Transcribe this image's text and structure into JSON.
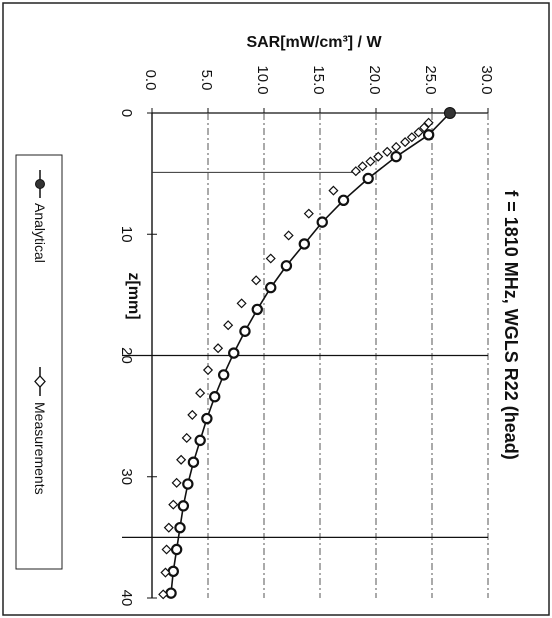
{
  "chart_data": {
    "type": "line",
    "title": "f = 1810 MHz, WGLS R22 (head)",
    "xlabel": "z[mm]",
    "ylabel": "SAR[mW/cm³] / W",
    "xlim": [
      0,
      40
    ],
    "ylim": [
      0,
      30
    ],
    "x_ticks": [
      "0",
      "10",
      "20",
      "30",
      "40"
    ],
    "y_ticks": [
      "0.0",
      "5.0",
      "10.0",
      "15.0",
      "20.0",
      "25.0",
      "30.0"
    ],
    "orientation": "rotated 90° clockwise",
    "grid": "dashed vertical gridlines at y ticks",
    "legend_position": "left",
    "series": [
      {
        "name": "Analytical",
        "marker": "filled-circle",
        "x": [
          0,
          1.8,
          3.6,
          5.4,
          7.2,
          9.0,
          10.8,
          12.6,
          14.4,
          16.2,
          18.0,
          19.8,
          21.6,
          23.4,
          25.2,
          27.0,
          28.8,
          30.6,
          32.4,
          34.2,
          36.0,
          37.8,
          39.6
        ],
        "values": [
          26.6,
          24.7,
          21.8,
          19.3,
          17.1,
          15.2,
          13.6,
          12.0,
          10.6,
          9.4,
          8.3,
          7.3,
          6.4,
          5.6,
          4.9,
          4.3,
          3.7,
          3.2,
          2.8,
          2.5,
          2.2,
          1.9,
          1.7
        ]
      },
      {
        "name": "Measurements",
        "marker": "open-diamond",
        "x": [
          0.8,
          1.2,
          1.6,
          2.0,
          2.4,
          2.8,
          3.2,
          3.6,
          4.0,
          4.4,
          4.8,
          6.4,
          8.3,
          10.1,
          12.0,
          13.8,
          15.7,
          17.5,
          19.4,
          21.2,
          23.1,
          24.9,
          26.8,
          28.6,
          30.5,
          32.3,
          34.2,
          36.0,
          37.9,
          39.7
        ],
        "values": [
          24.7,
          24.3,
          23.8,
          23.2,
          22.6,
          21.8,
          21.0,
          20.2,
          19.5,
          18.8,
          18.2,
          16.2,
          14.0,
          12.2,
          10.6,
          9.3,
          8.0,
          6.8,
          5.9,
          5.0,
          4.3,
          3.6,
          3.1,
          2.6,
          2.2,
          1.9,
          1.5,
          1.3,
          1.2,
          1.0
        ]
      }
    ]
  }
}
